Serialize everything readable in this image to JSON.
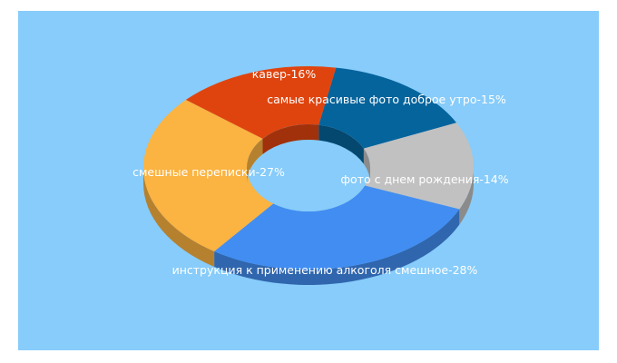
{
  "background": "#87CCFA",
  "chart_data": {
    "type": "pie",
    "style": "3d-donut",
    "slices": [
      {
        "label": "кавер-16%",
        "value": 16,
        "color": "#E0440E"
      },
      {
        "label": "самые красивые фото доброе утро-15%",
        "value": 15,
        "color": "#05649C"
      },
      {
        "label": "фото с днем рождения-14%",
        "value": 14,
        "color": "#C1C1C1"
      },
      {
        "label": "инструкция к применению алкоголя смешное-28%",
        "value": 28,
        "color": "#428DF1"
      },
      {
        "label": "смешные переписки-27%",
        "value": 27,
        "color": "#FBB341"
      }
    ]
  }
}
